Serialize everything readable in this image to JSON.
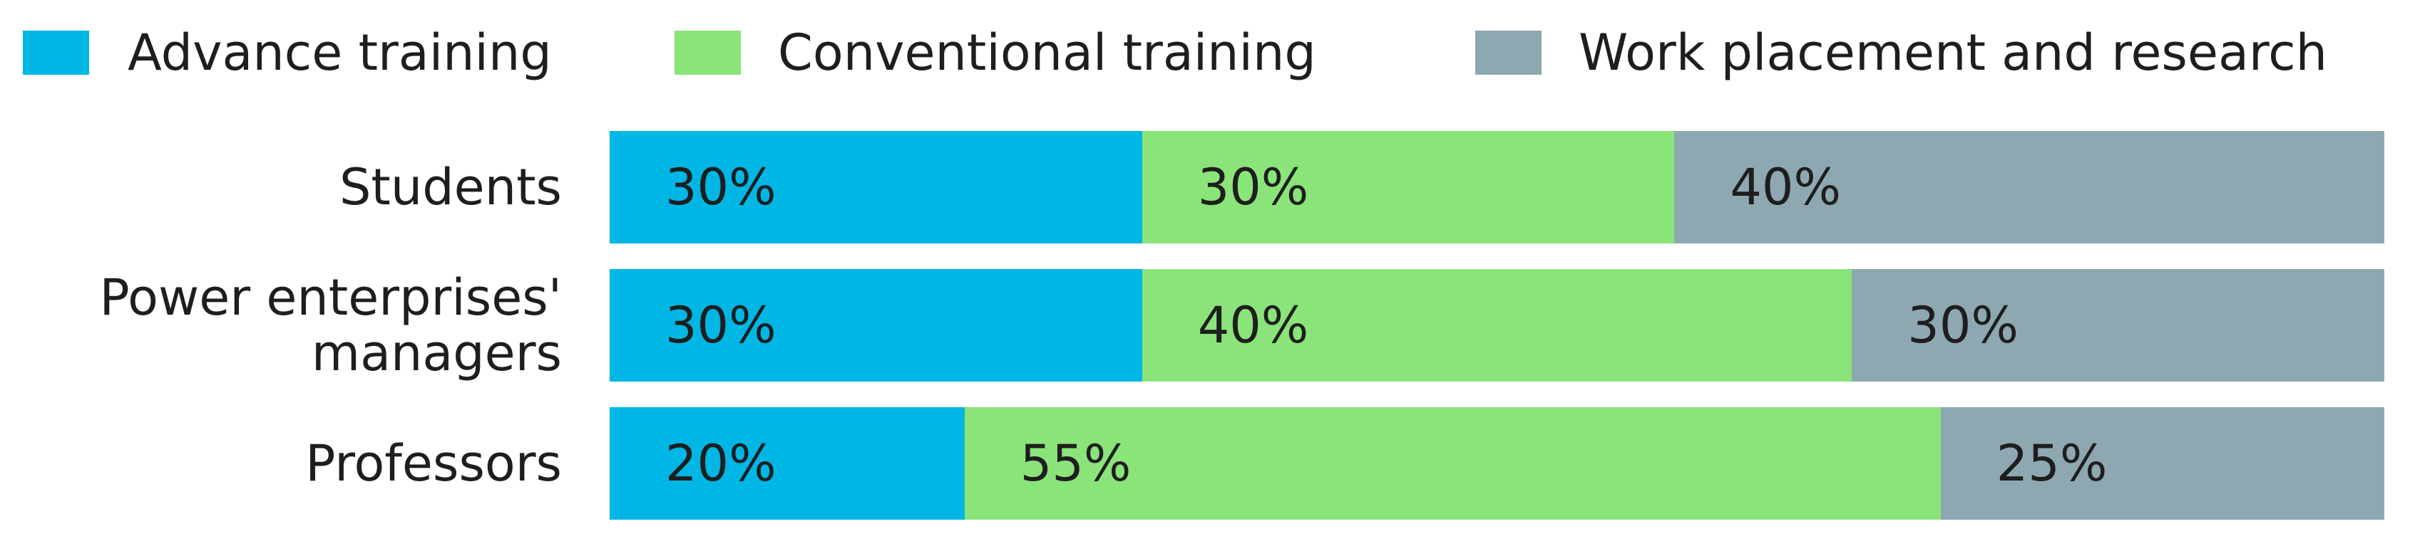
{
  "chart_data": {
    "type": "stacked-bar-horizontal",
    "categories": [
      "Students",
      "Power enterprises' managers",
      "Professors"
    ],
    "xlim": [
      0,
      100
    ],
    "series": [
      {
        "name": "Advance training",
        "color": "#00b6e4",
        "values": [
          30,
          30,
          20
        ],
        "value_labels": [
          "30%",
          "30%",
          "20%"
        ]
      },
      {
        "name": "Conventional training",
        "color": "#8ae47a",
        "values": [
          30,
          40,
          55
        ],
        "value_labels": [
          "30%",
          "40%",
          "55%"
        ]
      },
      {
        "name": "Work placement and research",
        "color": "#8ea8b1",
        "values": [
          40,
          30,
          25
        ],
        "value_labels": [
          "40%",
          "30%",
          "25%"
        ]
      }
    ]
  }
}
